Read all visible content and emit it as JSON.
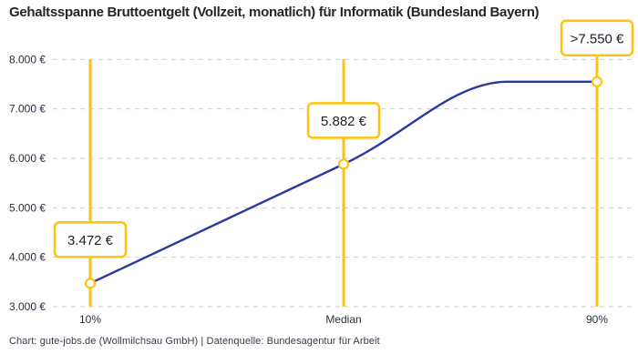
{
  "title": "Gehaltsspanne Bruttoentgelt (Vollzeit, monatlich) für Informatik (Bundesland Bayern)",
  "footer": "Chart: gute-jobs.de (Wollmilchsau GmbH) | Datenquelle: Bundesagentur für Arbeit",
  "chart_data": {
    "type": "line",
    "categories": [
      "10%",
      "Median",
      "90%"
    ],
    "values": [
      3472,
      5882,
      7550
    ],
    "point_labels": [
      "3.472 €",
      "5.882 €",
      ">7.550 €"
    ],
    "y_ticks": [
      3000,
      4000,
      5000,
      6000,
      7000,
      8000
    ],
    "y_tick_labels": [
      "3.000 €",
      "4.000 €",
      "5.000 €",
      "6.000 €",
      "7.000 €",
      "8.000 €"
    ],
    "ylim": [
      3000,
      8000
    ],
    "xlabel": "",
    "ylabel": "",
    "grid": "horizontal-dashed",
    "legend": "none",
    "annotations": "curve rises from 10% percentile to median, then flattens to a plateau at >7.550 € before the 90% percentile",
    "colors": {
      "line": "#2a3a9c",
      "accent": "#ffc20d",
      "grid": "#cccccc",
      "label_box_bg": "#ffffff",
      "text_dark": "#262626",
      "axis_text": "#2e2e3e"
    }
  }
}
